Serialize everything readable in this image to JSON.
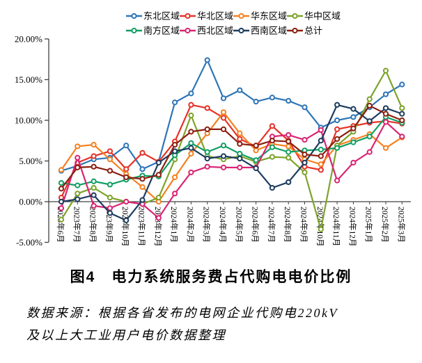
{
  "figure": {
    "title": "图4　电力系统服务费占代购电电价比例"
  },
  "source": {
    "line1": "数据来源：根据各省发布的电网企业代购电220kV",
    "line2": "及以上大工业用户电价数据整理"
  },
  "axes": {
    "y_tick_labels": [
      "20.00%",
      "15.00%",
      "10.00%",
      "5.00%",
      "0.00%",
      "-5.00%"
    ],
    "y_tick_values": [
      20,
      15,
      10,
      5,
      0,
      -5
    ]
  },
  "chart_data": {
    "type": "line",
    "title": "图4　电力系统服务费占代购电电价比例",
    "xlabel": "",
    "ylabel": "",
    "ylim": [
      -5,
      20
    ],
    "grid": false,
    "legend_position": "top",
    "categories": [
      "2023年6月",
      "2023年7月",
      "2023年8月",
      "2023年9月",
      "2023年10月",
      "2023年11月",
      "2023年12月",
      "2024年1月",
      "2024年2月",
      "2024年3月",
      "2024年4月",
      "2024年5月",
      "2024年6月",
      "2024年7月",
      "2024年8月",
      "2024年9月",
      "2024年10月",
      "2024年11月",
      "2024年12月",
      "2025年1月",
      "2025年2月",
      "2025年3月"
    ],
    "unit": "%",
    "series": [
      {
        "name": "东北区域",
        "color": "#2e75b6",
        "values": [
          3.8,
          4.4,
          5.2,
          5.4,
          6.9,
          4.0,
          4.9,
          12.2,
          13.3,
          17.4,
          12.7,
          13.7,
          12.3,
          12.8,
          12.4,
          11.6,
          9.1,
          10.0,
          10.4,
          11.6,
          13.2,
          14.4
        ]
      },
      {
        "name": "华北区域",
        "color": "#e53228",
        "values": [
          0.5,
          4.8,
          5.6,
          6.2,
          4.0,
          6.0,
          4.9,
          7.4,
          11.9,
          11.5,
          10.3,
          7.7,
          6.8,
          9.3,
          7.5,
          4.3,
          3.9,
          8.9,
          9.3,
          9.7,
          9.9,
          9.6
        ]
      },
      {
        "name": "华东区域",
        "color": "#f48120",
        "values": [
          3.9,
          6.8,
          7.0,
          5.2,
          3.4,
          1.8,
          0.0,
          3.0,
          5.9,
          8.4,
          11.0,
          8.4,
          6.3,
          7.1,
          6.8,
          5.2,
          4.6,
          6.9,
          7.6,
          8.3,
          6.6,
          7.9
        ]
      },
      {
        "name": "华中区域",
        "color": "#7da32a",
        "values": [
          -2.2,
          1.0,
          1.7,
          0.5,
          0.0,
          -0.3,
          0.5,
          5.2,
          10.6,
          5.6,
          5.2,
          5.6,
          4.9,
          5.5,
          5.4,
          3.6,
          -3.4,
          6.9,
          8.6,
          12.6,
          16.1,
          11.5
        ]
      },
      {
        "name": "南方区域",
        "color": "#119e63",
        "values": [
          2.3,
          2.0,
          2.5,
          2.1,
          2.7,
          3.2,
          3.1,
          5.7,
          7.2,
          6.1,
          6.9,
          5.9,
          5.1,
          6.7,
          6.1,
          6.3,
          6.4,
          6.6,
          7.3,
          8.0,
          10.4,
          9.7
        ]
      },
      {
        "name": "西北区域",
        "color": "#d92573",
        "values": [
          -0.8,
          5.4,
          -0.5,
          -0.8,
          0.0,
          -0.3,
          -2.0,
          1.0,
          3.6,
          4.3,
          4.2,
          4.2,
          4.2,
          8.0,
          8.2,
          7.6,
          8.8,
          2.6,
          4.8,
          6.1,
          9.8,
          8.0
        ]
      },
      {
        "name": "西南区域",
        "color": "#1c3c5e",
        "values": [
          0.0,
          0.3,
          0.8,
          -1.4,
          -2.3,
          0.2,
          4.8,
          6.2,
          6.6,
          5.3,
          5.6,
          5.3,
          4.1,
          1.7,
          2.4,
          4.8,
          7.5,
          11.9,
          11.4,
          9.9,
          11.5,
          10.8
        ]
      },
      {
        "name": "总计",
        "color": "#8c1f10",
        "values": [
          1.6,
          4.2,
          4.3,
          3.8,
          3.0,
          2.8,
          3.3,
          7.0,
          8.6,
          8.9,
          8.9,
          7.1,
          6.9,
          7.5,
          7.4,
          5.8,
          5.6,
          7.7,
          9.0,
          11.8,
          10.8,
          10.0
        ]
      }
    ]
  }
}
